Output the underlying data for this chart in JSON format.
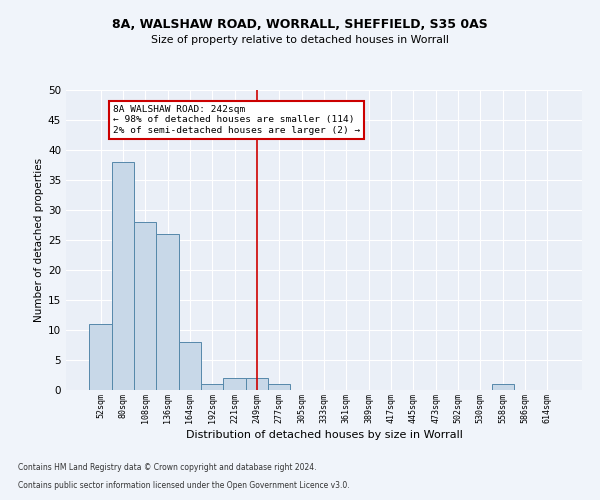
{
  "title1": "8A, WALSHAW ROAD, WORRALL, SHEFFIELD, S35 0AS",
  "title2": "Size of property relative to detached houses in Worrall",
  "xlabel": "Distribution of detached houses by size in Worrall",
  "ylabel": "Number of detached properties",
  "bar_values": [
    11,
    38,
    28,
    26,
    8,
    1,
    2,
    2,
    1,
    0,
    0,
    0,
    0,
    0,
    0,
    0,
    0,
    0,
    1,
    0,
    0
  ],
  "x_labels": [
    "52sqm",
    "80sqm",
    "108sqm",
    "136sqm",
    "164sqm",
    "192sqm",
    "221sqm",
    "249sqm",
    "277sqm",
    "305sqm",
    "333sqm",
    "361sqm",
    "389sqm",
    "417sqm",
    "445sqm",
    "473sqm",
    "502sqm",
    "530sqm",
    "558sqm",
    "586sqm",
    "614sqm"
  ],
  "bar_color": "#c8d8e8",
  "bar_edge_color": "#5588aa",
  "vline_x": 7,
  "vline_color": "#cc0000",
  "annotation_text": "8A WALSHAW ROAD: 242sqm\n← 98% of detached houses are smaller (114)\n2% of semi-detached houses are larger (2) →",
  "annotation_box_color": "#cc0000",
  "ylim": [
    0,
    50
  ],
  "yticks": [
    0,
    5,
    10,
    15,
    20,
    25,
    30,
    35,
    40,
    45,
    50
  ],
  "background_color": "#eaeff7",
  "fig_background_color": "#f0f4fa",
  "grid_color": "#ffffff",
  "footer1": "Contains HM Land Registry data © Crown copyright and database right 2024.",
  "footer2": "Contains public sector information licensed under the Open Government Licence v3.0."
}
